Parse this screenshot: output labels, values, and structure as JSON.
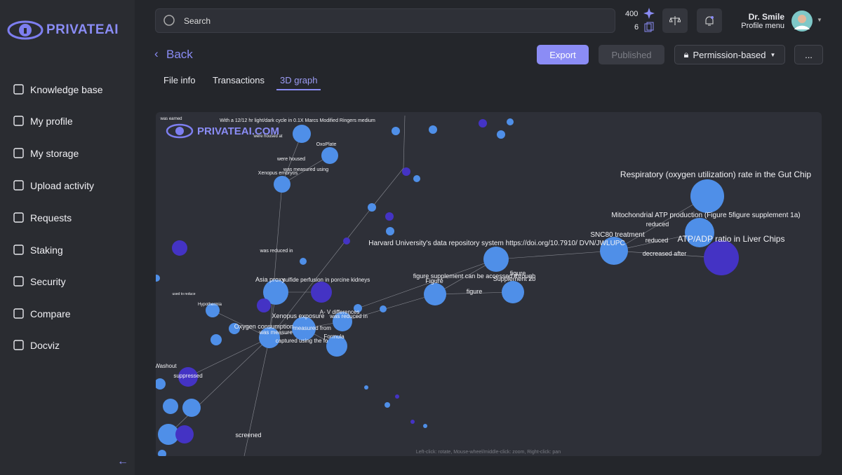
{
  "sidebar": {
    "logo": "PRIVATEAI",
    "nav": [
      "Knowledge base",
      "My profile",
      "My storage",
      "Upload activity",
      "Requests",
      "Staking",
      "Security",
      "Compare",
      "Docviz"
    ]
  },
  "topbar": {
    "search_placeholder": "Search",
    "credits": "400",
    "files": "6",
    "user_name": "Dr. Smile",
    "user_menu": "Profile menu"
  },
  "header": {
    "back": "Back",
    "export": "Export",
    "published": "Published",
    "permission": "Permission-based",
    "more": "..."
  },
  "tabs": [
    "File info",
    "Transactions",
    "3D graph"
  ],
  "graph": {
    "watermark": "PRIVATEAI.COM",
    "help": "Left-click: rotate, Mouse-wheel/middle-click: zoom, Right-click: pan",
    "labels": [
      "Respiratory (oxygen utilization) rate in the Gut Chip",
      "Mitochondrial ATP production (Figure 5figure supplement 1a)",
      "reduced",
      "SNC80 treatment",
      "reduced",
      "ATP/ADP ratio in Liver Chips",
      "decreased after",
      "Harvard University's data repository system https://doi.org/10.7910/ DVN/JWLUPC",
      "figure supplement can be accessed through",
      "figure",
      "Supplement 2b",
      "Figure",
      "figure",
      "Asia proxy",
      "sulfide perfusion in porcine kidneys",
      "A- V differences",
      "Xenopus exposure",
      "was reduced in",
      "Oxygen consumption",
      "measured from",
      "was measure",
      "Formula",
      "captured using the fo",
      "With a 12/12 hr light/dark cycle in 0.1X Marcs Modified Ringers medium",
      "were housed at",
      "OxoPlate",
      "were housed",
      "was measured using",
      "Xenopus embryos",
      "was reduced in",
      "screened",
      "suppressed",
      "was earned",
      "used to reduce",
      "Hypothermia",
      "Washout"
    ]
  }
}
